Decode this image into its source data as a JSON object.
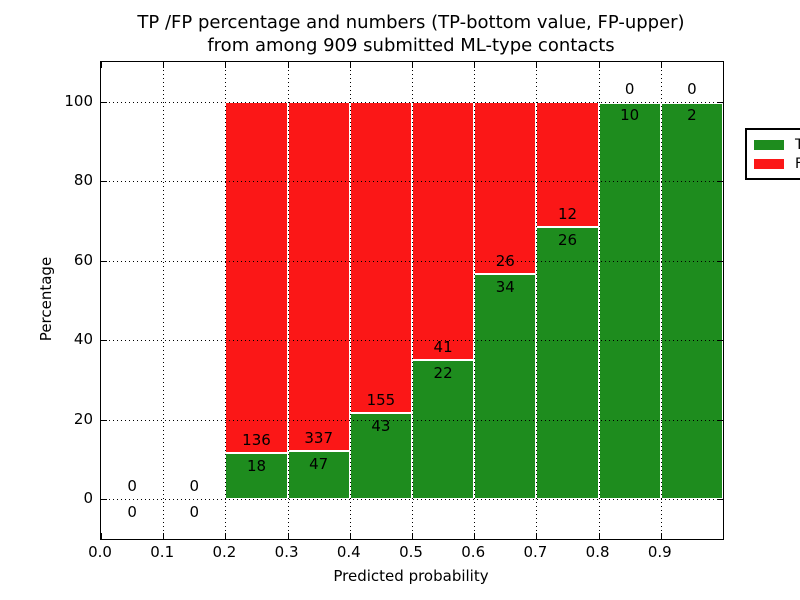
{
  "title": {
    "line1": "TP /FP percentage and numbers (TP-bottom value, FP-upper)",
    "line2": "from among 909 submitted ML-type contacts"
  },
  "axes": {
    "xlabel": "Predicted probability",
    "ylabel": "Percentage",
    "xtick_labels": [
      "0.0",
      "0.1",
      "0.2",
      "0.3",
      "0.4",
      "0.5",
      "0.6",
      "0.7",
      "0.8",
      "0.9"
    ],
    "ytick_labels": [
      "0",
      "20",
      "40",
      "60",
      "80",
      "100"
    ]
  },
  "legend": {
    "entries": [
      {
        "label": "TP",
        "color": "#1e8c1e"
      },
      {
        "label": "FP",
        "color": "#fb1717"
      }
    ],
    "position": "upper right"
  },
  "colors": {
    "tp": "#1e8c1e",
    "fp": "#fb1717",
    "bar_edge": "#ffffff",
    "grid": "#000000",
    "background": "#ffffff"
  },
  "chart_data": {
    "type": "bar",
    "stacked": true,
    "normalized_each_bar_to_percent": true,
    "title": "TP /FP percentage and numbers (TP-bottom value, FP-upper) from among 909 submitted ML-type contacts",
    "xlabel": "Predicted probability",
    "ylabel": "Percentage",
    "total_contacts": 909,
    "bin_edges": [
      0.0,
      0.1,
      0.2,
      0.3,
      0.4,
      0.5,
      0.6,
      0.7,
      0.8,
      0.9,
      1.0
    ],
    "series": [
      {
        "name": "TP",
        "color": "#1e8c1e",
        "counts": [
          0,
          0,
          18,
          47,
          43,
          22,
          34,
          26,
          10,
          2
        ]
      },
      {
        "name": "FP",
        "color": "#fb1717",
        "counts": [
          0,
          0,
          136,
          337,
          155,
          41,
          26,
          12,
          0,
          0
        ]
      }
    ],
    "value_label_rule": "counts drawn at TP/FP boundary: FP count above, TP count below",
    "xlim": [
      0.0,
      1.0
    ],
    "ylim": [
      -10,
      110
    ],
    "xticks": [
      0.0,
      0.1,
      0.2,
      0.3,
      0.4,
      0.5,
      0.6,
      0.7,
      0.8,
      0.9
    ],
    "yticks": [
      0,
      20,
      40,
      60,
      80,
      100
    ],
    "grid": true,
    "legend_position": "upper right"
  }
}
